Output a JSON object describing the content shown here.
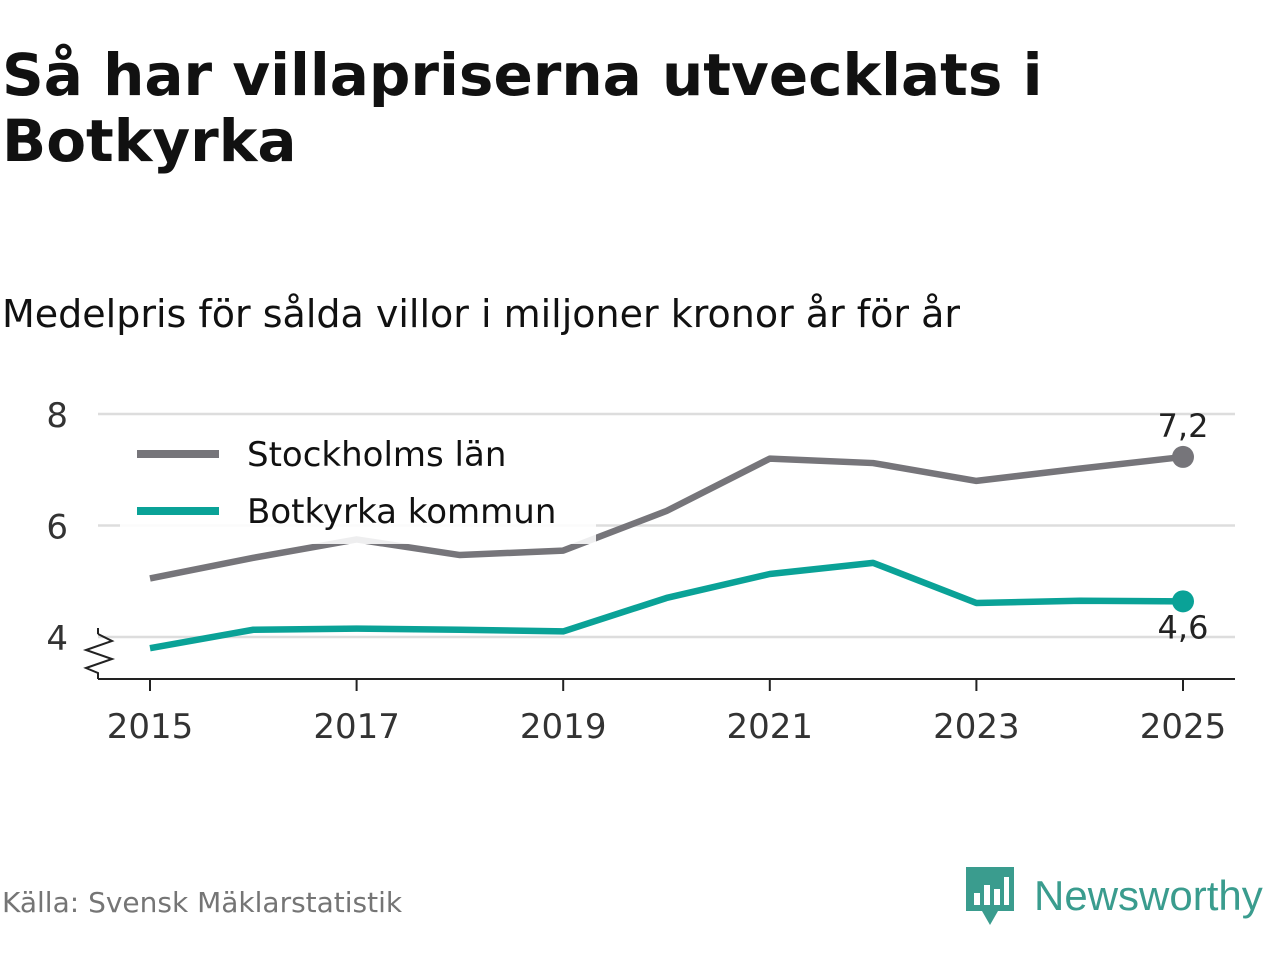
{
  "title": "Så har villapriserna utvecklats i Botkyrka",
  "subtitle": "Medelpris för sålda villor i miljoner kronor år för år",
  "source": "Källa: Svensk Mäklarstatistik",
  "brand": "Newsworthy",
  "colors": {
    "stockholm": "#76757a",
    "botkyrka": "#0aa297",
    "grid": "#dddddd",
    "axis": "#222222",
    "brand": "#3a9c8e"
  },
  "chart_data": {
    "type": "line",
    "title": "Så har villapriserna utvecklats i Botkyrka",
    "subtitle": "Medelpris för sålda villor i miljoner kronor år för år",
    "x": [
      2015,
      2016,
      2017,
      2018,
      2019,
      2020,
      2021,
      2022,
      2023,
      2024,
      2025
    ],
    "x_ticks": [
      2015,
      2017,
      2019,
      2021,
      2023,
      2025
    ],
    "y_ticks": [
      4,
      6,
      8
    ],
    "ylim": [
      3.2,
      8
    ],
    "xlim": [
      2014.5,
      2025.5
    ],
    "y_axis_break": true,
    "grid": true,
    "legend_position": "top-left",
    "series": [
      {
        "name": "Stockholms län",
        "color": "#76757a",
        "values": [
          5.05,
          5.42,
          5.75,
          5.47,
          5.55,
          6.26,
          7.2,
          7.12,
          6.8,
          7.02,
          7.23
        ],
        "end_label": "7,2"
      },
      {
        "name": "Botkyrka kommun",
        "color": "#0aa297",
        "values": [
          3.8,
          4.13,
          4.15,
          4.13,
          4.1,
          4.7,
          5.13,
          5.33,
          4.61,
          4.65,
          4.64
        ],
        "end_label": "4,6"
      }
    ]
  }
}
